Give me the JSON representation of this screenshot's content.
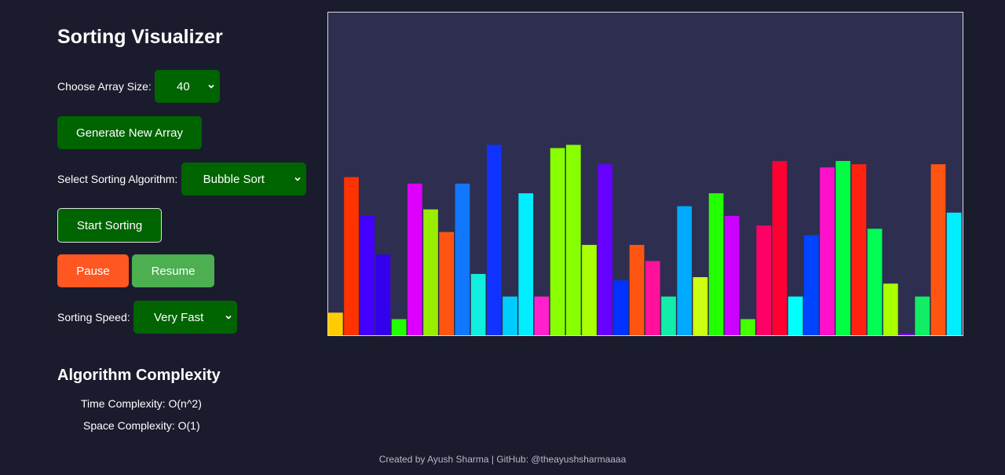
{
  "app": {
    "title": "Sorting Visualizer"
  },
  "controls": {
    "array_size_label": "Choose Array Size:",
    "array_size_value": "40",
    "generate_label": "Generate New Array",
    "algorithm_label": "Select Sorting Algorithm:",
    "algorithm_value": "Bubble Sort",
    "start_label": "Start Sorting",
    "pause_label": "Pause",
    "resume_label": "Resume",
    "speed_label": "Sorting Speed:",
    "speed_value": "Very Fast"
  },
  "complexity": {
    "title": "Algorithm Complexity",
    "time": "Time Complexity: O(n^2)",
    "space": "Space Complexity: O(1)"
  },
  "footer": {
    "text": "Created by Ayush Sharma | GitHub: @theayushsharmaaaa"
  },
  "colors": {
    "background": "#1b1b2e",
    "panel": "#2e2e50",
    "primary_green": "#006400",
    "pause_orange": "#ff5722",
    "resume_green": "#4caf50"
  },
  "icons": {
    "dropdown": "chevron-down-icon"
  },
  "chart_data": {
    "type": "bar",
    "ylim": [
      0,
      100
    ],
    "values": [
      7,
      49,
      37,
      25,
      5,
      47,
      39,
      32,
      47,
      19,
      59,
      12,
      44,
      12,
      58,
      59,
      28,
      53,
      17,
      28,
      23,
      12,
      40,
      18,
      44,
      37,
      5,
      34,
      54,
      12,
      31,
      52,
      54,
      53,
      33,
      16,
      0.5,
      12,
      53,
      38
    ],
    "colors": [
      "#ffcc00",
      "#ff3300",
      "#4400ff",
      "#3300ee",
      "#22ff00",
      "#dd00ff",
      "#99ee00",
      "#ff5511",
      "#1177ff",
      "#11eedd",
      "#1133ff",
      "#00ccff",
      "#00eeff",
      "#ff22cc",
      "#88ff00",
      "#88ff00",
      "#aaff00",
      "#6600ff",
      "#0033ff",
      "#ff5511",
      "#ff1199",
      "#11eeaa",
      "#00aaff",
      "#ccff11",
      "#22ff00",
      "#cc00ff",
      "#44ff00",
      "#ff0066",
      "#ff0033",
      "#00ffff",
      "#0044ff",
      "#ff11cc",
      "#00ff44",
      "#ff2211",
      "#00ff55",
      "#aaff00",
      "#7700ff",
      "#11ee66",
      "#ff5511",
      "#00eeff"
    ]
  }
}
